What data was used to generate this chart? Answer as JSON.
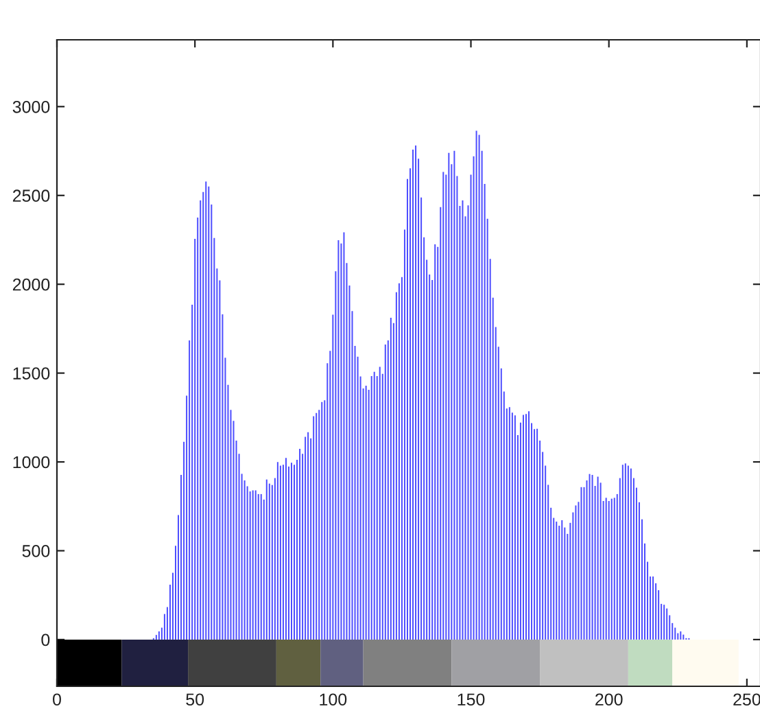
{
  "chart_data": {
    "type": "histogram",
    "bins": [
      34.5,
      35.5,
      36.5,
      37.5,
      38.5,
      39.5,
      40.5,
      41.5,
      42.5,
      43.5,
      44.5,
      45.5,
      46.5,
      47.5,
      48.5,
      49.5,
      50.5,
      51.5,
      52.5,
      53.5,
      54.5,
      55.5,
      56.5,
      57.5,
      58.5,
      59.5,
      60.5,
      61.5,
      62.5,
      63.5,
      64.5,
      65.5,
      66.5,
      67.5,
      68.5,
      69.5,
      70.5,
      71.5,
      72.5,
      73.5,
      74.5,
      75.5,
      76.5,
      77.5,
      78.5,
      79.5,
      80.5,
      81.5,
      82.5,
      83.5,
      84.5,
      85.5,
      86.5,
      87.5,
      88.5,
      89.5,
      90.5,
      91.5,
      92.5,
      93.5,
      94.5,
      95.5,
      96.5,
      97.5,
      98.5,
      99.5,
      100.5,
      101.5,
      102.5,
      103.5,
      104.5,
      105.5,
      106.5,
      107.5,
      108.5,
      109.5,
      110.5,
      111.5,
      112.5,
      113.5,
      114.5,
      115.5,
      116.5,
      117.5,
      118.5,
      119.5,
      120.5,
      121.5,
      122.5,
      123.5,
      124.5,
      125.5,
      126.5,
      127.5,
      128.5,
      129.5,
      130.5,
      131.5,
      132.5,
      133.5,
      134.5,
      135.5,
      136.5,
      137.5,
      138.5,
      139.5,
      140.5,
      141.5,
      142.5,
      143.5,
      144.5,
      145.5,
      146.5,
      147.5,
      148.5,
      149.5,
      150.5,
      151.5,
      152.5,
      153.5,
      154.5,
      155.5,
      156.5,
      157.5,
      158.5,
      159.5,
      160.5,
      161.5,
      162.5,
      163.5,
      164.5,
      165.5,
      166.5,
      167.5,
      168.5,
      169.5,
      170.5,
      171.5,
      172.5,
      173.5,
      174.5,
      175.5,
      176.5,
      177.5,
      178.5,
      179.5,
      180.5,
      181.5,
      182.5,
      183.5,
      184.5,
      185.5,
      186.5,
      187.5,
      188.5,
      189.5,
      190.5,
      191.5,
      192.5,
      193.5,
      194.5,
      195.5,
      196.5,
      197.5,
      198.5,
      199.5,
      200.5,
      201.5,
      202.5,
      203.5,
      204.5,
      205.5,
      206.5,
      207.5,
      208.5,
      209.5,
      210.5,
      211.5,
      212.5,
      213.5,
      214.5,
      215.5,
      216.5,
      217.5,
      218.5,
      219.5,
      220.5,
      221.5,
      222.5,
      223.5,
      224.5,
      225.5,
      226.5,
      227.5,
      228.5,
      229.5
    ],
    "values": [
      8,
      26,
      46,
      67,
      144,
      183,
      309,
      376,
      528,
      701,
      927,
      1113,
      1373,
      1684,
      1885,
      2256,
      2375,
      2472,
      2519,
      2578,
      2550,
      2449,
      2261,
      2089,
      2022,
      1831,
      1586,
      1434,
      1293,
      1231,
      1120,
      1046,
      933,
      896,
      863,
      834,
      840,
      840,
      819,
      819,
      788,
      901,
      878,
      870,
      909,
      999,
      979,
      984,
      1022,
      974,
      995,
      984,
      1012,
      1074,
      1046,
      1141,
      1167,
      1133,
      1257,
      1275,
      1293,
      1337,
      1347,
      1556,
      1625,
      1829,
      2073,
      2248,
      2230,
      2292,
      2120,
      1993,
      1849,
      1653,
      1592,
      1481,
      1414,
      1429,
      1406,
      1483,
      1507,
      1483,
      1535,
      1496,
      1661,
      1684,
      1811,
      1782,
      1955,
      2006,
      2040,
      2308,
      2593,
      2653,
      2758,
      2781,
      2707,
      2488,
      2264,
      2138,
      2055,
      2024,
      2225,
      2210,
      2434,
      2632,
      2617,
      2740,
      2676,
      2751,
      2609,
      2441,
      2472,
      2382,
      2444,
      2617,
      2720,
      2864,
      2841,
      2751,
      2565,
      2369,
      2143,
      1924,
      1759,
      1648,
      1527,
      1396,
      1301,
      1308,
      1277,
      1262,
      1151,
      1221,
      1265,
      1270,
      1285,
      1218,
      1185,
      1187,
      1120,
      1056,
      979,
      871,
      742,
      685,
      664,
      641,
      672,
      631,
      595,
      657,
      716,
      755,
      775,
      858,
      858,
      896,
      932,
      927,
      865,
      917,
      883,
      780,
      798,
      780,
      793,
      798,
      819,
      909,
      984,
      992,
      979,
      963,
      909,
      855,
      773,
      677,
      541,
      438,
      355,
      355,
      317,
      278,
      201,
      196,
      175,
      137,
      93,
      67,
      36,
      46,
      28,
      8,
      8
    ],
    "color": "#4d4dff",
    "xlim": [
      0,
      255
    ],
    "ylim": [
      -263,
      3376
    ],
    "xticks": [
      0,
      50,
      100,
      150,
      200,
      250
    ],
    "yticks": [
      0,
      500,
      1000,
      1500,
      2000,
      2500,
      3000
    ],
    "bands": [
      {
        "axis": "x",
        "from": 0,
        "to": 23.5,
        "color": "#000000"
      },
      {
        "axis": "x",
        "from": 23.5,
        "to": 47.5,
        "color": "#202040"
      },
      {
        "axis": "x",
        "from": 47.5,
        "to": 79.5,
        "color": "#404040"
      },
      {
        "axis": "x",
        "from": 79.5,
        "to": 95.5,
        "color": "#606040"
      },
      {
        "axis": "x",
        "from": 95.5,
        "to": 111,
        "color": "#606080"
      },
      {
        "axis": "x",
        "from": 111,
        "to": 143,
        "color": "#808080"
      },
      {
        "axis": "x",
        "from": 143,
        "to": 175,
        "color": "#a0a0a4"
      },
      {
        "axis": "x",
        "from": 175,
        "to": 207,
        "color": "#c0c0c0"
      },
      {
        "axis": "x",
        "from": 207,
        "to": 223,
        "color": "#c0dcc0"
      },
      {
        "axis": "x",
        "from": 223,
        "to": 247,
        "color": "#fffbf0"
      }
    ],
    "grid": false
  }
}
